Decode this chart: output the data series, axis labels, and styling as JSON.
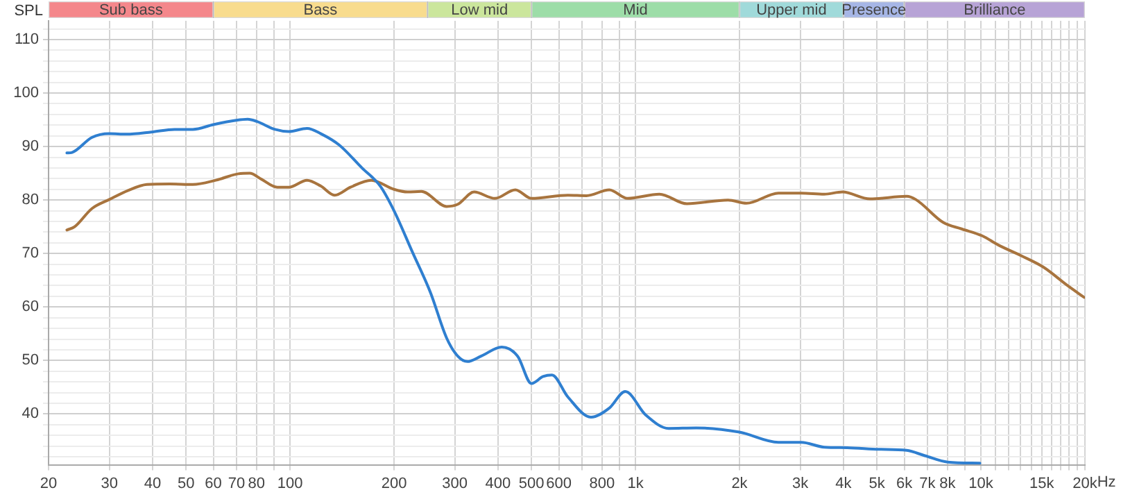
{
  "chart_data": [
    {
      "type": "bar",
      "orientation": "horizontal",
      "log": "x",
      "xlim": [
        20,
        20000
      ],
      "tick_labels": false,
      "grid": false,
      "categories": [
        null
      ],
      "series": [
        {
          "name": "Sub bass",
          "color": "#f4878b",
          "base": [
            20
          ],
          "values": [
            40
          ]
        },
        {
          "name": "Bass",
          "color": "#f8dc8e",
          "base": [
            60
          ],
          "values": [
            190
          ]
        },
        {
          "name": "Low mid",
          "color": "#cbe69c",
          "base": [
            250
          ],
          "values": [
            250
          ]
        },
        {
          "name": "Mid",
          "color": "#9ddda8",
          "base": [
            500
          ],
          "values": [
            1500
          ]
        },
        {
          "name": "Upper mid",
          "color": "#a0dada",
          "base": [
            2000
          ],
          "values": [
            2000
          ]
        },
        {
          "name": "Presence",
          "color": "#a6b6e6",
          "base": [
            4000
          ],
          "values": [
            2000
          ]
        },
        {
          "name": "Brilliance",
          "color": "#b7a3d6",
          "base": [
            6000
          ],
          "values": [
            14000
          ]
        }
      ]
    },
    {
      "type": "line",
      "ylabel": "SPL",
      "xlabel": "Hz",
      "log": "x",
      "grid": true,
      "marker": "none",
      "line_style": "solid",
      "xlim": [
        20,
        20000
      ],
      "ylim": [
        30.5,
        113.5
      ],
      "xticks": [
        20,
        30,
        40,
        50,
        60,
        70,
        80,
        {
          "value": 90,
          "label": null
        },
        100,
        200,
        300,
        400,
        500,
        600,
        {
          "value": 700,
          "label": null
        },
        800,
        {
          "value": 900,
          "label": null
        },
        {
          "value": 1000,
          "label": "1k"
        },
        {
          "value": 2000,
          "label": "2k"
        },
        {
          "value": 3000,
          "label": "3k"
        },
        {
          "value": 4000,
          "label": "4k"
        },
        {
          "value": 5000,
          "label": "5k"
        },
        {
          "value": 6000,
          "label": "6k"
        },
        {
          "value": 7000,
          "label": "7k"
        },
        {
          "value": 8000,
          "label": "8k"
        },
        {
          "value": 9000,
          "label": null
        },
        {
          "value": 10000,
          "label": "10k"
        },
        {
          "value": 11000,
          "label": null
        },
        {
          "value": 12000,
          "label": null
        },
        {
          "value": 13000,
          "label": null
        },
        {
          "value": 14000,
          "label": null
        },
        {
          "value": 15000,
          "label": "15k"
        },
        {
          "value": 16000,
          "label": null
        },
        {
          "value": 17000,
          "label": null
        },
        {
          "value": 18000,
          "label": null
        },
        {
          "value": 19000,
          "label": null
        },
        {
          "value": 20000,
          "label": "20k"
        }
      ],
      "yticks": [
        {
          "value": 32,
          "label": null
        },
        {
          "value": 34,
          "label": null
        },
        {
          "value": 36,
          "label": null
        },
        {
          "value": 38,
          "label": null
        },
        40,
        {
          "value": 42,
          "label": null
        },
        {
          "value": 44,
          "label": null
        },
        {
          "value": 46,
          "label": null
        },
        {
          "value": 48,
          "label": null
        },
        50,
        {
          "value": 52,
          "label": null
        },
        {
          "value": 54,
          "label": null
        },
        {
          "value": 56,
          "label": null
        },
        {
          "value": 58,
          "label": null
        },
        60,
        {
          "value": 62,
          "label": null
        },
        {
          "value": 64,
          "label": null
        },
        {
          "value": 66,
          "label": null
        },
        {
          "value": 68,
          "label": null
        },
        70,
        {
          "value": 72,
          "label": null
        },
        {
          "value": 74,
          "label": null
        },
        {
          "value": 76,
          "label": null
        },
        {
          "value": 78,
          "label": null
        },
        80,
        {
          "value": 82,
          "label": null
        },
        {
          "value": 84,
          "label": null
        },
        {
          "value": 86,
          "label": null
        },
        {
          "value": 88,
          "label": null
        },
        90,
        {
          "value": 92,
          "label": null
        },
        {
          "value": 94,
          "label": null
        },
        {
          "value": 96,
          "label": null
        },
        {
          "value": 98,
          "label": null
        },
        100,
        {
          "value": 102,
          "label": null
        },
        {
          "value": 104,
          "label": null
        },
        {
          "value": 106,
          "label": null
        },
        {
          "value": 108,
          "label": null
        },
        110,
        {
          "value": 112,
          "label": null
        }
      ],
      "series": [
        {
          "color": "#2f7fd0",
          "x": [
            22.6,
            23.4,
            26.7,
            30,
            33.6,
            39.7,
            46.3,
            52.3,
            60,
            69.9,
            75.4,
            80.1,
            90.5,
            99.2,
            112,
            122.8,
            138.7,
            161.5,
            182.5,
            200,
            226,
            255,
            284,
            306,
            326,
            357,
            410,
            456,
            500,
            540,
            573,
            637,
            743,
            840,
            934,
            1071,
            1248,
            1499,
            2000,
            2594,
            3020,
            3518,
            4100,
            5071,
            6095,
            6883,
            8017,
            9930
          ],
          "values": [
            88.8,
            88.9,
            91.7,
            92.4,
            92.3,
            92.7,
            93.2,
            93.2,
            94.1,
            94.9,
            95.1,
            94.7,
            93.2,
            92.8,
            93.4,
            92.4,
            90.3,
            86.0,
            82.6,
            78.0,
            70.3,
            62.7,
            54.2,
            50.8,
            49.8,
            50.8,
            52.5,
            50.8,
            45.7,
            47.0,
            47.3,
            43.2,
            39.4,
            41.1,
            44.2,
            39.8,
            37.3,
            37.4,
            36.6,
            34.7,
            34.7,
            33.8,
            33.7,
            33.4,
            33.2,
            32.2,
            31.0,
            30.8
          ]
        },
        {
          "color": "#a8743e",
          "x": [
            22.6,
            23.8,
            26.7,
            30,
            34,
            38.5,
            44.9,
            52.3,
            61,
            70.9,
            76.4,
            82.6,
            91.9,
            99.2,
            112,
            122.8,
            134.6,
            149.7,
            171.8,
            200,
            219,
            240,
            284,
            306,
            341,
            392,
            449,
            500,
            637,
            721,
            840,
            948,
            1173,
            1409,
            1853,
            2095,
            2594,
            3020,
            3518,
            3973,
            4775,
            6095,
            6475,
            7780,
            8790,
            10090,
            11220,
            13060,
            15210,
            17730,
            19900
          ],
          "values": [
            74.4,
            75.0,
            78.4,
            80.1,
            81.8,
            82.9,
            83.0,
            82.9,
            83.7,
            84.9,
            85.0,
            83.9,
            82.4,
            82.4,
            83.7,
            82.6,
            80.9,
            82.4,
            83.7,
            82.0,
            81.5,
            81.6,
            78.8,
            79.2,
            81.5,
            80.3,
            81.9,
            80.3,
            80.9,
            80.8,
            81.9,
            80.3,
            81.1,
            79.3,
            80.0,
            79.4,
            81.3,
            81.3,
            81.1,
            81.5,
            80.2,
            80.7,
            80.1,
            75.8,
            74.6,
            73.3,
            71.6,
            69.6,
            67.4,
            64.1,
            61.8
          ]
        }
      ]
    }
  ]
}
